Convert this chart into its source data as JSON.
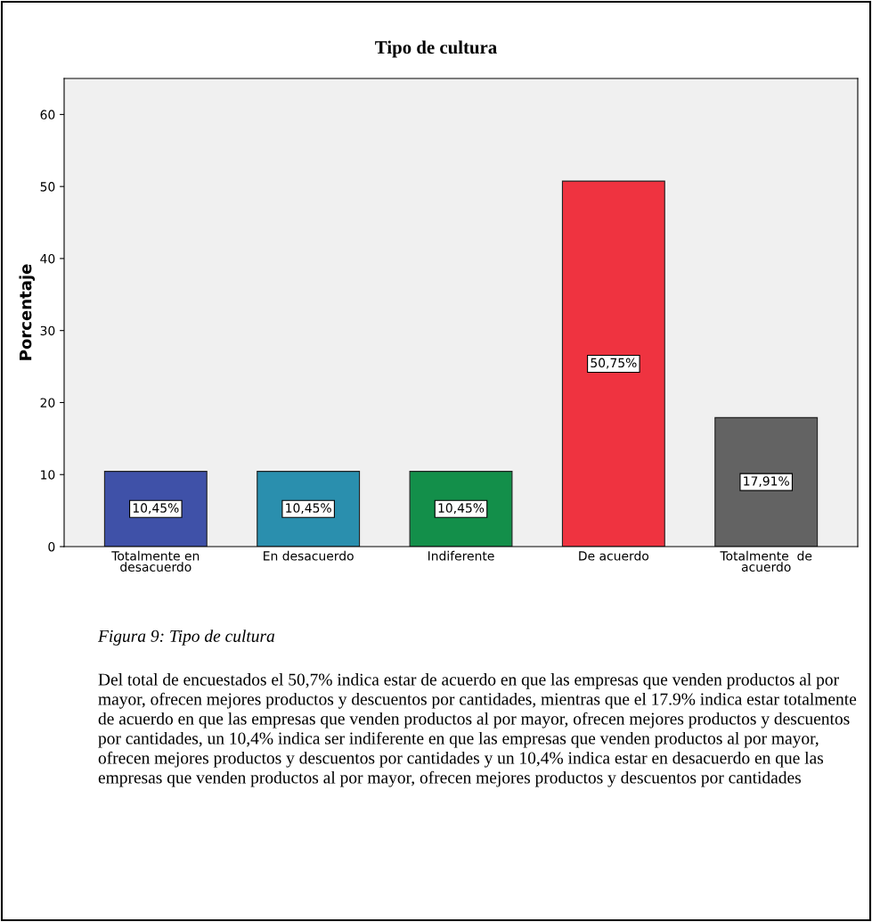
{
  "chart_data": {
    "type": "bar",
    "title": "Tipo de cultura",
    "ylabel": "Porcentaje",
    "categories": [
      "Totalmente en\ndesacuerdo",
      "En desacuerdo",
      "Indiferente",
      "De acuerdo",
      "Totalmente  de\nacuerdo"
    ],
    "values": [
      10.45,
      10.45,
      10.45,
      50.75,
      17.91
    ],
    "colors": [
      "#3f51a8",
      "#2a8fae",
      "#138f4a",
      "#ef3340",
      "#636363"
    ],
    "value_labels": [
      "10,45%",
      "10,45%",
      "10,45%",
      "50,75%",
      "17,91%"
    ],
    "ylim": [
      0,
      65
    ],
    "yticks": [
      0,
      10,
      20,
      30,
      40,
      50,
      60
    ],
    "grid": false,
    "annotations": [
      "Figura 9: Tipo de cultura",
      "Del total de encuestados el 50,7% indica estar de acuerdo en que las empresas que venden productos al por mayor, ofrecen mejores productos y descuentos por cantidades, mientras que el 17.9% indica estar totalmente de acuerdo en que las empresas que venden productos al por mayor, ofrecen mejores productos y descuentos por cantidades, un 10,4% indica ser indiferente en que las empresas que venden productos al por mayor, ofrecen mejores productos y descuentos por cantidades y un 10,4% indica estar en desacuerdo en que las empresas que venden productos al por mayor, ofrecen mejores productos y descuentos por cantidades"
    ]
  }
}
